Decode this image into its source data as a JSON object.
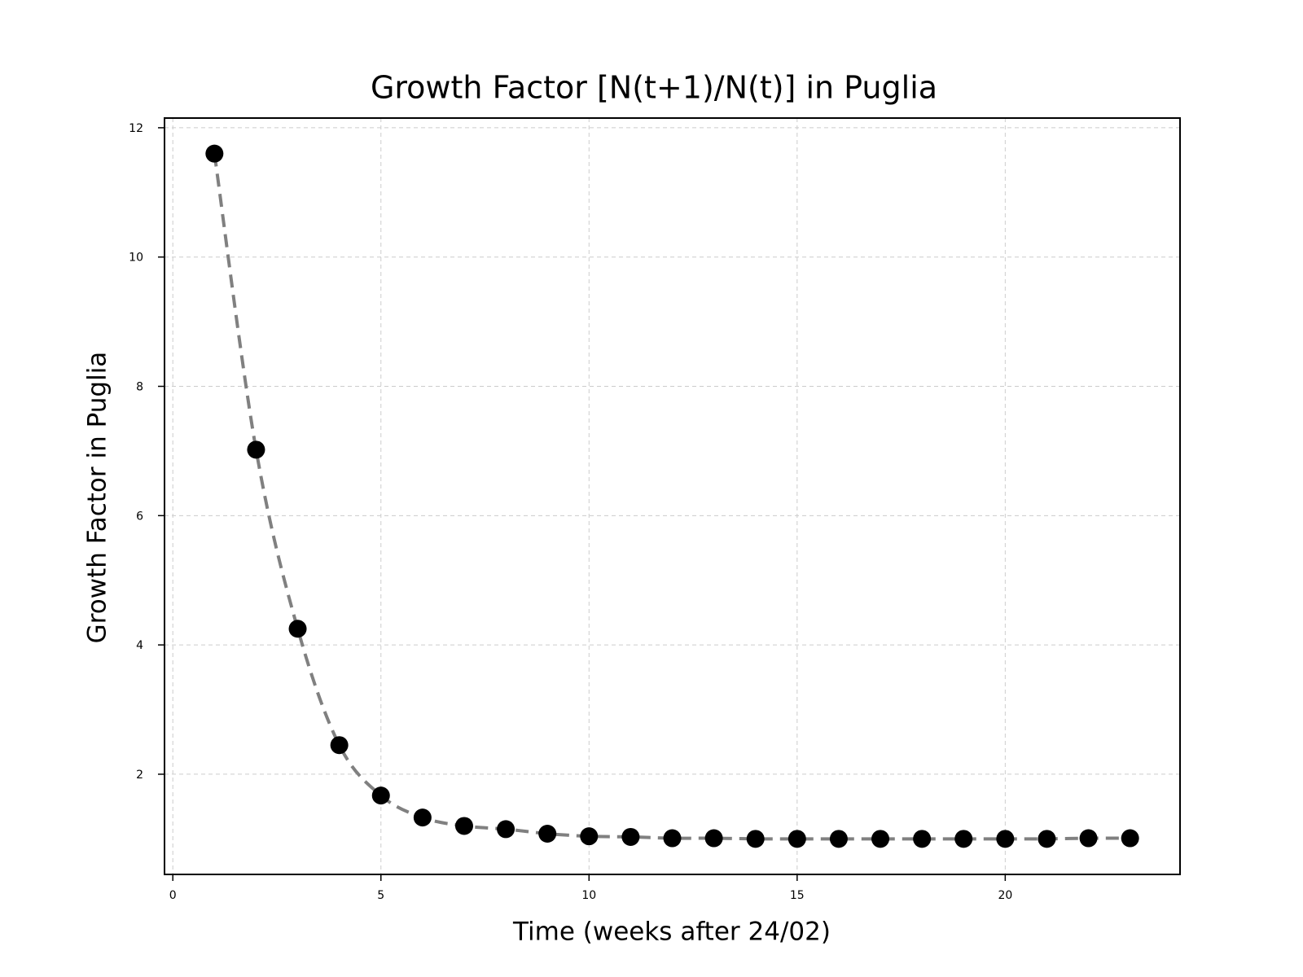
{
  "chart_data": {
    "type": "scatter",
    "title": "Growth Factor [N(t+1)/N(t)] in Puglia",
    "xlabel": "Time (weeks after 24/02)",
    "ylabel": "Growth Factor in Puglia",
    "xlim": [
      -0.2,
      24.2
    ],
    "ylim": [
      0.45,
      12.15
    ],
    "xticks": [
      0,
      5,
      10,
      15,
      20
    ],
    "yticks": [
      2,
      4,
      6,
      8,
      10,
      12
    ],
    "grid": true,
    "series": [
      {
        "marker_color": "#000000",
        "line_color": "#808080",
        "line_style": "dashed",
        "x": [
          1,
          2,
          3,
          4,
          5,
          6,
          7,
          8,
          9,
          10,
          11,
          12,
          13,
          14,
          15,
          16,
          17,
          18,
          19,
          20,
          21,
          22,
          23
        ],
        "y": [
          11.6,
          7.02,
          4.25,
          2.45,
          1.67,
          1.33,
          1.2,
          1.15,
          1.08,
          1.04,
          1.03,
          1.01,
          1.01,
          1.0,
          1.0,
          1.0,
          1.0,
          1.0,
          1.0,
          1.0,
          1.0,
          1.01,
          1.01
        ]
      }
    ]
  }
}
